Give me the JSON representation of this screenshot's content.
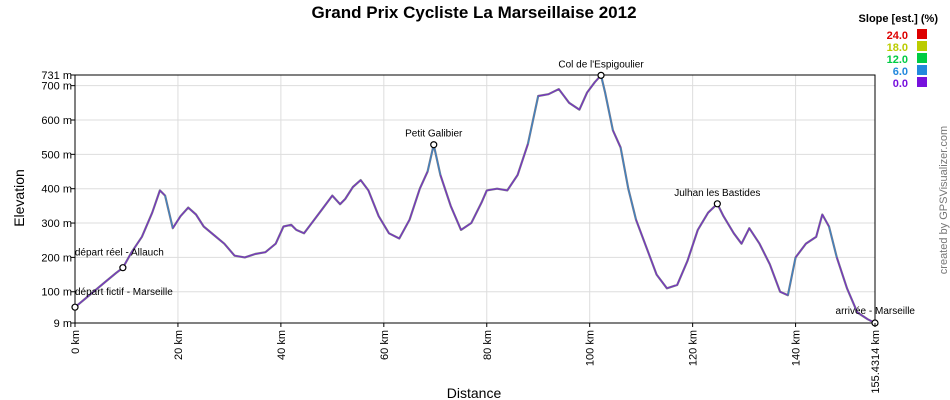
{
  "chart_data": {
    "type": "line",
    "title": "Grand Prix Cycliste La Marseillaise 2012",
    "xlabel": "Distance",
    "ylabel": "Elevation",
    "xlim": [
      0,
      155.4314
    ],
    "ylim": [
      9,
      731
    ],
    "x_ticks": [
      {
        "value": 0,
        "label": "0 km"
      },
      {
        "value": 20,
        "label": "20 km"
      },
      {
        "value": 40,
        "label": "40 km"
      },
      {
        "value": 60,
        "label": "60 km"
      },
      {
        "value": 80,
        "label": "80 km"
      },
      {
        "value": 100,
        "label": "100 km"
      },
      {
        "value": 120,
        "label": "120 km"
      },
      {
        "value": 140,
        "label": "140 km"
      },
      {
        "value": 155.4314,
        "label": "155.4314 km"
      }
    ],
    "y_ticks": [
      {
        "value": 9,
        "label": "9 m"
      },
      {
        "value": 100,
        "label": "100 m"
      },
      {
        "value": 200,
        "label": "200 m"
      },
      {
        "value": 300,
        "label": "300 m"
      },
      {
        "value": 400,
        "label": "400 m"
      },
      {
        "value": 500,
        "label": "500 m"
      },
      {
        "value": 600,
        "label": "600 m"
      },
      {
        "value": 700,
        "label": "700 m"
      },
      {
        "value": 731,
        "label": "731 m"
      }
    ],
    "grid": true,
    "x": [
      0,
      2,
      4,
      6,
      8,
      9.3,
      11,
      13,
      15,
      16.5,
      17.5,
      19,
      20.5,
      22,
      23.5,
      25,
      27,
      29,
      31,
      33,
      35,
      37,
      39,
      40.5,
      42,
      43,
      44.5,
      46,
      48,
      50,
      51.5,
      52.5,
      54,
      55.5,
      57,
      59,
      61,
      63,
      65,
      67,
      68.5,
      69.7,
      71,
      73,
      75,
      77,
      79,
      80,
      82,
      84,
      86,
      88,
      90,
      92,
      94,
      95,
      96,
      98,
      99.5,
      101,
      102.2,
      103,
      104.5,
      106,
      107.5,
      109,
      111,
      113,
      115,
      117,
      119,
      121,
      123,
      124.8,
      126,
      128,
      129.5,
      131,
      133,
      135,
      137,
      138.5,
      140,
      142,
      144,
      145.2,
      146.5,
      148,
      150,
      152,
      154,
      155.4314
    ],
    "values": [
      55,
      80,
      105,
      130,
      155,
      170,
      215,
      260,
      330,
      395,
      380,
      285,
      320,
      345,
      325,
      290,
      265,
      240,
      205,
      200,
      210,
      215,
      240,
      290,
      295,
      280,
      270,
      300,
      340,
      380,
      355,
      370,
      405,
      425,
      395,
      320,
      270,
      255,
      310,
      400,
      450,
      528,
      440,
      350,
      280,
      300,
      360,
      395,
      400,
      395,
      440,
      530,
      670,
      675,
      690,
      670,
      650,
      630,
      680,
      710,
      730,
      680,
      570,
      520,
      400,
      310,
      230,
      150,
      110,
      120,
      190,
      280,
      330,
      356,
      320,
      270,
      240,
      285,
      240,
      180,
      100,
      90,
      200,
      240,
      260,
      325,
      290,
      200,
      110,
      40,
      20,
      9
    ],
    "waypoints": [
      {
        "name": "départ fictif - Marseille",
        "x": 0,
        "y": 55
      },
      {
        "name": "départ réel - Allauch",
        "x": 9.3,
        "y": 170
      },
      {
        "name": "Petit Galibier",
        "x": 69.7,
        "y": 528
      },
      {
        "name": "Col de l'Espigoulier",
        "x": 102.2,
        "y": 730
      },
      {
        "name": "Julhan les Bastides",
        "x": 124.8,
        "y": 356
      },
      {
        "name": "arrivée - Marseille",
        "x": 155.4314,
        "y": 9
      }
    ],
    "legend": {
      "title": "Slope [est.] (%)",
      "placement": "top-right",
      "entries": [
        {
          "label": "24.0",
          "color": "#dd0000"
        },
        {
          "label": "18.0",
          "color": "#bbcc00"
        },
        {
          "label": "12.0",
          "color": "#00cc44"
        },
        {
          "label": "6.0",
          "color": "#2288dd"
        },
        {
          "label": "0.0",
          "color": "#7711dd"
        }
      ]
    }
  },
  "credit": "created by GPSVisualizer.com"
}
